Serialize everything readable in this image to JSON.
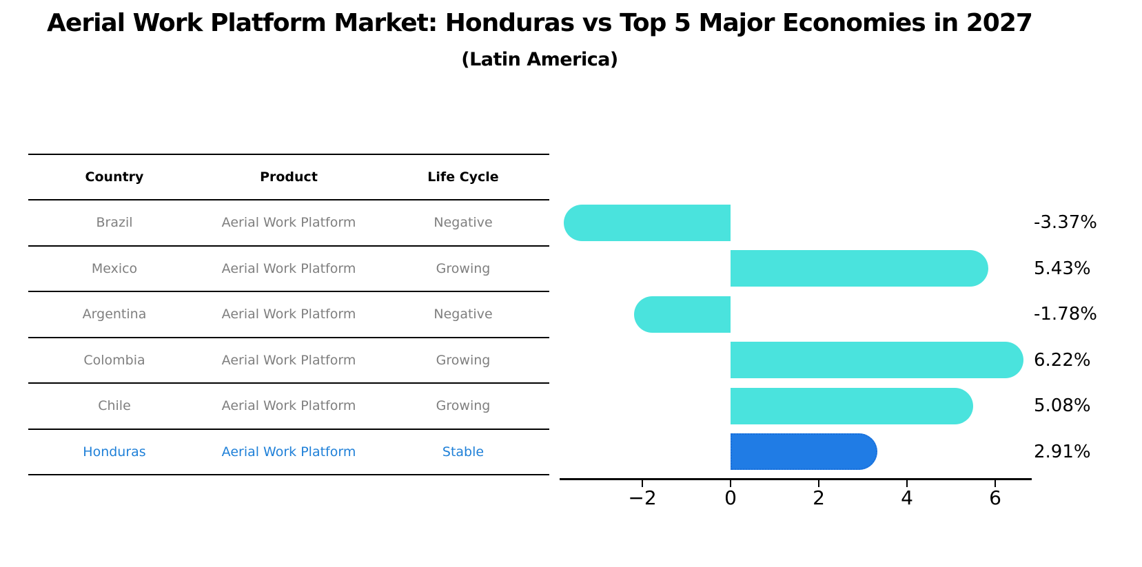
{
  "title": "Aerial Work Platform Market: Honduras vs Top 5 Major Economies in 2027",
  "subtitle": "(Latin America)",
  "table": {
    "headers": [
      "Country",
      "Product",
      "Life Cycle"
    ],
    "rows": [
      {
        "country": "Brazil",
        "product": "Aerial Work Platform",
        "life_cycle": "Negative",
        "highlight": false
      },
      {
        "country": "Mexico",
        "product": "Aerial Work Platform",
        "life_cycle": "Growing",
        "highlight": false
      },
      {
        "country": "Argentina",
        "product": "Aerial Work Platform",
        "life_cycle": "Negative",
        "highlight": false
      },
      {
        "country": "Colombia",
        "product": "Aerial Work Platform",
        "life_cycle": "Growing",
        "highlight": false
      },
      {
        "country": "Chile",
        "product": "Aerial Work Platform",
        "life_cycle": "Growing",
        "highlight": false
      },
      {
        "country": "Honduras",
        "product": "Aerial Work Platform",
        "life_cycle": "Stable",
        "highlight": true
      }
    ]
  },
  "chart_data": {
    "type": "bar",
    "orientation": "horizontal",
    "title": "Aerial Work Platform Market: Honduras vs Top 5 Major Economies in 2027",
    "subtitle": "(Latin America)",
    "categories": [
      "Brazil",
      "Mexico",
      "Argentina",
      "Colombia",
      "Chile",
      "Honduras"
    ],
    "values": [
      -3.37,
      5.43,
      -1.78,
      6.22,
      5.08,
      2.91
    ],
    "value_labels": [
      "-3.37%",
      "5.43%",
      "-1.78%",
      "6.22%",
      "5.08%",
      "2.91%"
    ],
    "highlight_index": 5,
    "x_ticks": [
      -2,
      0,
      2,
      4,
      6
    ],
    "x_tick_labels": [
      "−2",
      "0",
      "2",
      "4",
      "6"
    ],
    "xlim": [
      -3.88,
      6.84
    ],
    "grid": false,
    "legend": null,
    "bar_cap_style": "rounded-outer-end",
    "highlight_edge_style": "dotted"
  },
  "colors": {
    "bar_cyan": "#4ae3dd",
    "bar_blue": "#207ce5",
    "highlight_text": "#1f80d8",
    "row_text": "#7f7f7f",
    "header_text": "#000000",
    "axis": "#000000",
    "background": "#ffffff"
  }
}
